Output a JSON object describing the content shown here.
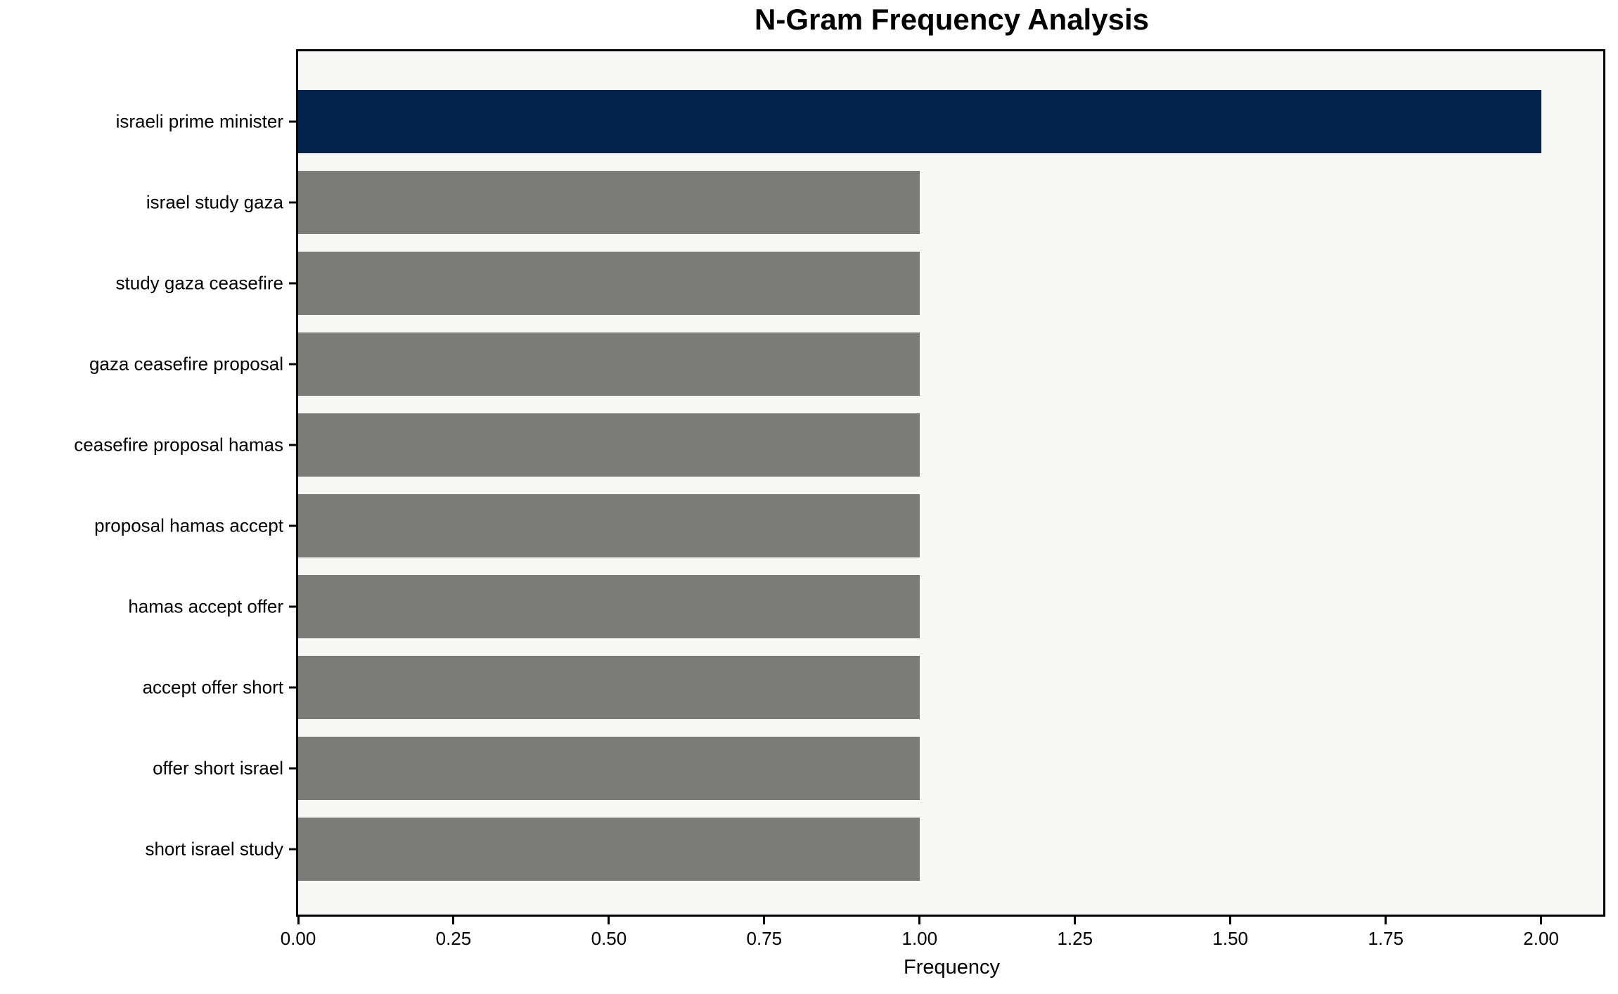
{
  "chart_data": {
    "type": "bar",
    "orientation": "horizontal",
    "title": "N-Gram Frequency Analysis",
    "xlabel": "Frequency",
    "ylabel": "",
    "categories": [
      "israeli prime minister",
      "israel study gaza",
      "study gaza ceasefire",
      "gaza ceasefire proposal",
      "ceasefire proposal hamas",
      "proposal hamas accept",
      "hamas accept offer",
      "accept offer short",
      "offer short israel",
      "short israel study"
    ],
    "values": [
      2,
      1,
      1,
      1,
      1,
      1,
      1,
      1,
      1,
      1
    ],
    "bar_colors": [
      "#03234c",
      "#7b7b78",
      "#7b7b78",
      "#7b7b78",
      "#7b7b78",
      "#7b7b78",
      "#7b7b78",
      "#7b7b78",
      "#7b7b78",
      "#7b7b78"
    ],
    "highlight_color": "#03234c",
    "default_bar_color": "#7b7b78",
    "plot_background": "#f7f7f6",
    "figure_background": "#ffffff",
    "axis_color": "#000000",
    "xlim": [
      0,
      2.1
    ],
    "xticks": [
      0,
      0.25,
      0.5,
      0.75,
      1.0,
      1.25,
      1.5,
      1.75,
      2.0
    ],
    "xtick_labels": [
      "0.00",
      "0.25",
      "0.50",
      "0.75",
      "1.00",
      "1.25",
      "1.50",
      "1.75",
      "2.00"
    ],
    "grid": false,
    "legend": null
  }
}
